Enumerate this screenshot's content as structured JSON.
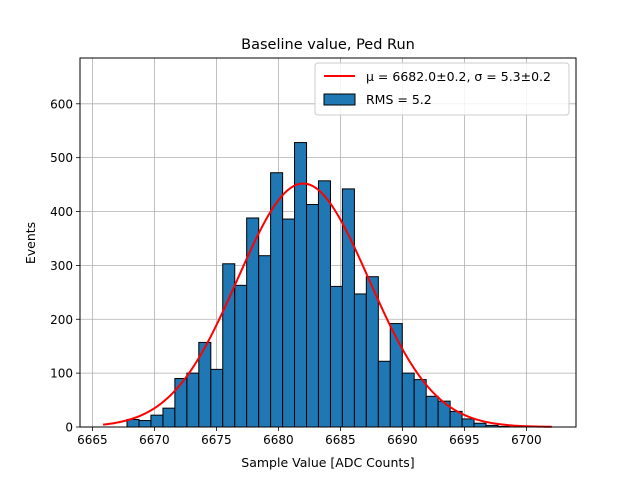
{
  "chart_data": {
    "type": "bar",
    "title": "Baseline value, Ped Run",
    "xlabel": "Sample Value [ADC Counts]",
    "ylabel": "Events",
    "xlim": [
      6664,
      6704
    ],
    "ylim": [
      0,
      685
    ],
    "xticks": [
      6665,
      6670,
      6675,
      6680,
      6685,
      6690,
      6695,
      6700
    ],
    "yticks": [
      0,
      100,
      200,
      300,
      400,
      500,
      600
    ],
    "grid": true,
    "legend_position": "top-right",
    "histogram": {
      "name": "RMS = 5.2",
      "color": "#1f77b4",
      "edgecolor": "#000000",
      "bin_edges": [
        6665.86,
        6666.83,
        6667.79,
        6668.76,
        6669.72,
        6670.69,
        6671.65,
        6672.62,
        6673.58,
        6674.55,
        6675.51,
        6676.48,
        6677.44,
        6678.41,
        6679.37,
        6680.34,
        6681.3,
        6682.27,
        6683.23,
        6684.2,
        6685.16,
        6686.13,
        6687.09,
        6688.06,
        6689.02,
        6689.99,
        6690.95,
        6691.92,
        6692.88,
        6693.85,
        6694.81,
        6695.78,
        6696.74,
        6697.71,
        6698.67,
        6699.64,
        6700.6,
        6701.57,
        6702.53
      ],
      "counts": [
        0,
        0,
        14,
        12,
        22,
        35,
        90,
        100,
        157,
        107,
        303,
        263,
        388,
        318,
        472,
        386,
        528,
        413,
        457,
        261,
        442,
        247,
        279,
        122,
        192,
        100,
        88,
        57,
        48,
        29,
        15,
        7,
        3,
        1,
        0,
        0,
        0,
        0
      ]
    },
    "fit": {
      "name": "$\\mu = 6682.0 \\pm 0.2$, $\\sigma = 5.3 \\pm 0.2$",
      "color": "#ff0000",
      "mu": 6682.0,
      "sigma": 5.3,
      "amplitude": 452,
      "x_range": [
        6665.86,
        6702.05
      ]
    },
    "legend": [
      {
        "label": "μ = 6682.0±0.2, σ = 5.3±0.2",
        "kind": "line",
        "color": "#ff0000"
      },
      {
        "label": "RMS = 5.2",
        "kind": "patch",
        "color": "#1f77b4"
      }
    ]
  }
}
